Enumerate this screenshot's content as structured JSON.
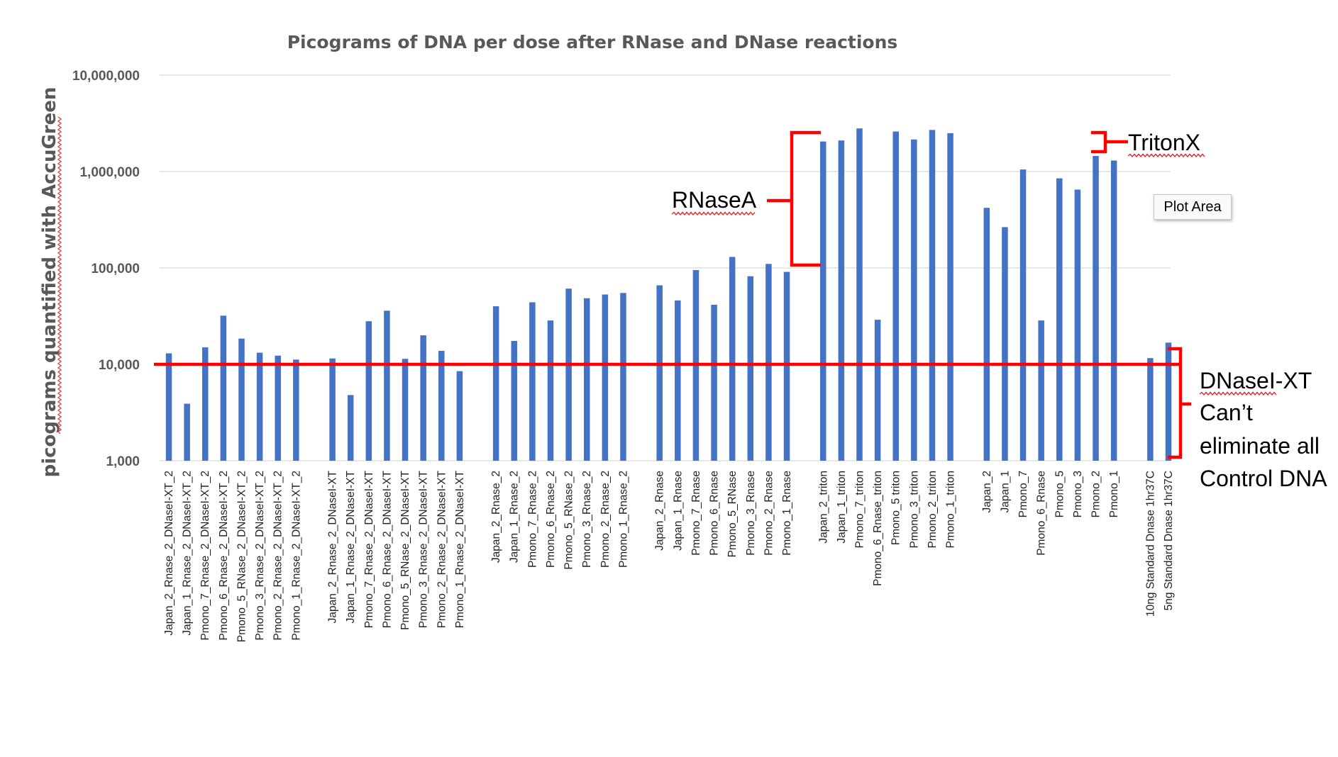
{
  "chart_data": {
    "type": "bar",
    "title": "Picograms of DNA per dose after RNase and DNase reactions",
    "ylabel": "picograms quantified with AccuGreen",
    "xlabel": "",
    "yscale": "log",
    "ylim": [
      1000,
      10000000
    ],
    "yticks": [
      "1,000",
      "10,000",
      "100,000",
      "1,000,000",
      "10,000,000"
    ],
    "grid": true,
    "bar_color": "#4472C4",
    "categories": [
      "Japan_2_Rnase_2_DNaseI-XT_2",
      "Japan_1_Rnase_2_DNaseI-XT_2",
      "Pmono_7_Rnase_2_DNaseI-XT_2",
      "Pmono_6_Rnase_2_DNaseI-XT_2",
      "Pmono_5_RNase_2_DNaseI-XT_2",
      "Pmono_3_Rnase_2_DNaseI-XT_2",
      "Pmono_2_Rnase_2_DNaseI-XT_2",
      "Pmono_1_Rnase_2_DNaseI-XT_2",
      "",
      "Japan_2_Rnase_2_DNaseI-XT",
      "Japan_1_Rnase_2_DNaseI-XT",
      "Pmono_7_Rnase_2_DNaseI-XT",
      "Pmono_6_Rnase_2_DNaseI-XT",
      "Pmono_5_RNase_2_DNaseI-XT",
      "Pmono_3_Rnase_2_DNaseI-XT",
      "Pmono_2_Rnase_2_DNaseI-XT",
      "Pmono_1_Rnase_2_DNaseI-XT",
      "",
      "Japan_2_Rnase_2",
      "Japan_1_Rnase_2",
      "Pmono_7_Rnase_2",
      "Pmono_6_Rnase_2",
      "Pmono_5_RNase_2",
      "Pmono_3_Rnase_2",
      "Pmono_2_Rnase_2",
      "Pmono_1_Rnase_2",
      "",
      "Japan_2_Rnase",
      "Japan_1_Rnase",
      "Pmono_7_Rnase",
      "Pmono_6_Rnase",
      "Pmono_5_RNase",
      "Pmono_3_Rnase",
      "Pmono_2_Rnase",
      "Pmono_1_Rnase",
      "",
      "Japan_2_triton",
      "Japan_1_triton",
      "Pmono_7_triton",
      "Pmono_6_Rnase_triton",
      "Pmono_5 triton",
      "Pmono_3_triton",
      "Pmono_2_triton",
      "Pmono_1_triton",
      "",
      "Japan_2",
      "Japan_1",
      "Pmono_7",
      "Pmono_6_Rnase",
      "Pmono_5",
      "Pmono_3",
      "Pmono_2",
      "Pmono_1",
      "",
      "10ng Standard Dnase 1hr37C",
      "5ng Standard Dnase 1hr37C"
    ],
    "values": [
      13000,
      3900,
      15000,
      32000,
      18500,
      13200,
      12300,
      11200,
      null,
      11500,
      4800,
      28000,
      36000,
      11400,
      20000,
      13800,
      8500,
      null,
      40000,
      17500,
      44000,
      28500,
      61000,
      48500,
      53000,
      55000,
      null,
      66000,
      46000,
      95000,
      41500,
      130000,
      82000,
      110000,
      91000,
      null,
      2050000,
      2100000,
      2800000,
      29000,
      2600000,
      2150000,
      2700000,
      2500000,
      null,
      420000,
      265000,
      1050000,
      28500,
      850000,
      650000,
      1450000,
      1300000,
      null,
      11600,
      16800
    ],
    "reference_line": {
      "value": 10000,
      "color": "#FF0000"
    },
    "annotations": {
      "rnase": "RNaseA",
      "triton": "TritonX",
      "dnase_line1": "DNaseI-XT",
      "dnase_line2": "Can’t",
      "dnase_line3": "eliminate all",
      "dnase_line4": "Control DNA"
    },
    "annotation_color": "#FF0000"
  },
  "tooltip": {
    "label": "Plot Area"
  }
}
